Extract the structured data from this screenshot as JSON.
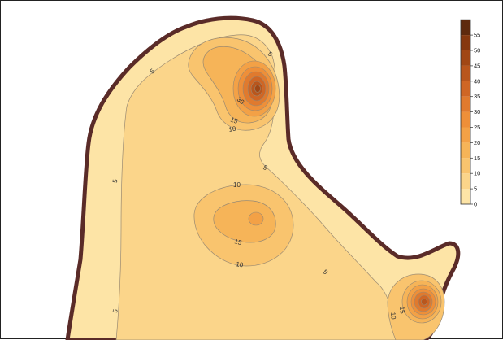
{
  "map": {
    "contour_labels": [
      "5",
      "5",
      "5",
      "5",
      "5",
      "5",
      "10",
      "10",
      "10",
      "10",
      "15",
      "15",
      "15",
      "30"
    ],
    "legend": {
      "levels": [
        "0",
        "5",
        "10",
        "15",
        "20",
        "25",
        "30",
        "35",
        "40",
        "45",
        "50",
        "55"
      ]
    },
    "colors": {
      "outline": "#5a2b28",
      "level_0": "#fde4a6",
      "level_5": "#fbd58a",
      "level_10": "#f9c46e",
      "level_15": "#f6b458",
      "level_20": "#f3a146",
      "level_25": "#ee8f39",
      "level_30": "#e07a2e",
      "level_35": "#cf6625",
      "level_40": "#b9561d",
      "level_45": "#a14715",
      "level_50": "#86380f",
      "level_55": "#5e2a0e"
    }
  }
}
